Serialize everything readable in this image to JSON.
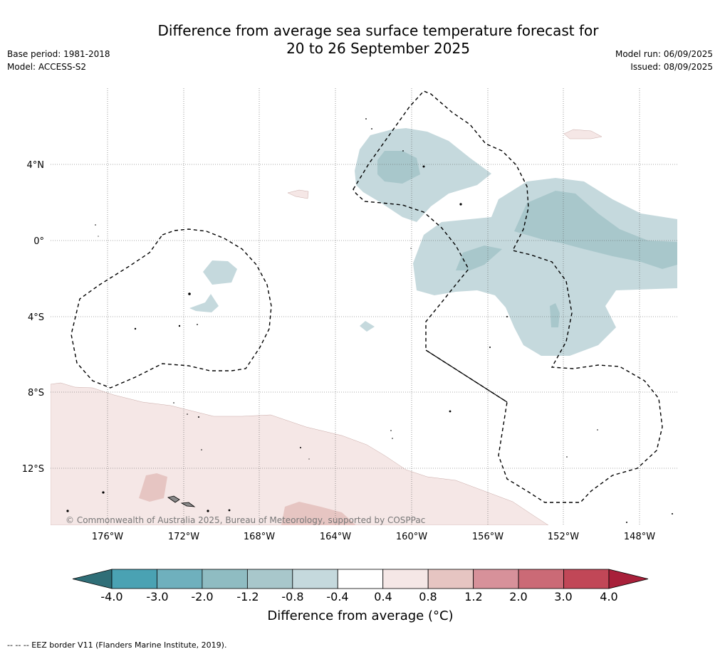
{
  "header": {
    "title_line1": "Difference from average sea surface temperature forecast for",
    "title_line2": "20 to 26 September 2025",
    "base_period": "Base period: 1981-2018",
    "model": "Model: ACCESS-S2",
    "model_run": "Model run: 06/09/2025",
    "issued": "Issued: 08/09/2025"
  },
  "map": {
    "lat_labels": [
      "4°N",
      "0°",
      "4°S",
      "8°S",
      "12°S"
    ],
    "lon_labels": [
      "176°W",
      "172°W",
      "168°W",
      "164°W",
      "160°W",
      "156°W",
      "152°W",
      "148°W"
    ],
    "copyright": "© Commonwealth of Australia 2025, Bureau of Meteorology, supported by COSPPac",
    "colors": {
      "cool_light": "#c5d9dd",
      "cool_medium": "#a8c7cb",
      "warm_light": "#f5e7e6",
      "warm_medium": "#e6c5c2",
      "eez": "#000000"
    }
  },
  "colorbar": {
    "ticks": [
      "-4.0",
      "-3.0",
      "-2.0",
      "-1.2",
      "-0.8",
      "-0.4",
      "0.4",
      "0.8",
      "1.2",
      "2.0",
      "3.0",
      "4.0"
    ],
    "colors": [
      "#2f6e77",
      "#4aa2b3",
      "#6fb0bd",
      "#8fbcc2",
      "#a8c7cb",
      "#c5d9dd",
      "#ffffff",
      "#f5e7e6",
      "#e6c5c2",
      "#d7919a",
      "#cb6a76",
      "#c14757",
      "#a8203a"
    ],
    "label": "Difference from average (°C)"
  },
  "footnote": "-- -- -- EEZ border V11 (Flanders Marine Institute, 2019)."
}
